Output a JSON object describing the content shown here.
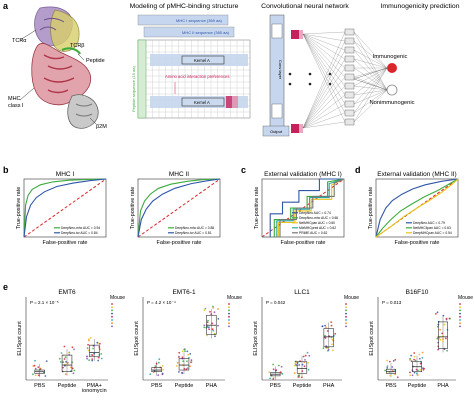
{
  "colors": {
    "green": "#3cab3c",
    "blue": "#2f56a8",
    "red": "#d9262c",
    "yellow": "#e8c21a",
    "teal": "#2aa6a0",
    "gray": "#777777",
    "pink": "#c8205a",
    "lightblue": "#c6d6ee"
  },
  "panel_a": {
    "letter": "a",
    "titles": {
      "modeling": "Modeling of pMHC-binding structure",
      "cnn": "Convolutional neural network",
      "prediction": "Immunogenicity prediction"
    },
    "mol_labels": {
      "tcra": "TCRα",
      "tcrb": "TCRβ",
      "peptide": "Peptide",
      "mhc1": "MHC",
      "mhc2": "class I",
      "b2m": "β2M"
    },
    "seq_labels": {
      "mhc1": "MHC I sequence (369 aa)",
      "mhc2": "MHC II sequence (365 aa)",
      "peptide_seq": "Peptide sequence (15 aa)",
      "kernel1": "Kernel A",
      "kernel2": "Kernel A",
      "aa_pref": "Amino acid interaction preferences",
      "conv": "Conv layer",
      "out": "Output"
    },
    "outputs": {
      "immuno": "Immunogenic",
      "nonimmuno": "Nonimmunogenic"
    }
  },
  "chart_data": [
    {
      "id": "b1",
      "type": "line",
      "panel": "b",
      "title": "MHC I",
      "xlabel": "False-positive rate",
      "ylabel": "True-positive rate",
      "xlim": [
        0,
        1
      ],
      "ylim": [
        0,
        1
      ],
      "series": [
        {
          "name": "DeepNeo-mhc AUC = 0.94",
          "color": "green",
          "x": [
            0,
            0.02,
            0.05,
            0.1,
            0.2,
            0.35,
            0.55,
            0.75,
            1
          ],
          "y": [
            0,
            0.55,
            0.72,
            0.82,
            0.9,
            0.95,
            0.98,
            0.99,
            1
          ]
        },
        {
          "name": "DeepNeo-tcr AUC = 0.84",
          "color": "blue",
          "x": [
            0,
            0.03,
            0.08,
            0.15,
            0.25,
            0.4,
            0.6,
            0.8,
            1
          ],
          "y": [
            0,
            0.35,
            0.55,
            0.68,
            0.78,
            0.87,
            0.93,
            0.97,
            1
          ]
        }
      ]
    },
    {
      "id": "b2",
      "type": "line",
      "panel": "",
      "title": "MHC II",
      "xlabel": "False-positive rate",
      "ylabel": "True-positive rate",
      "xlim": [
        0,
        1
      ],
      "ylim": [
        0,
        1
      ],
      "series": [
        {
          "name": "DeepNeo-mhc AUC = 0.88",
          "color": "green",
          "x": [
            0,
            0.03,
            0.08,
            0.15,
            0.25,
            0.4,
            0.6,
            0.8,
            1
          ],
          "y": [
            0,
            0.45,
            0.62,
            0.74,
            0.84,
            0.91,
            0.96,
            0.99,
            1
          ]
        },
        {
          "name": "DeepNeo-tcr AUC = 0.81",
          "color": "blue",
          "x": [
            0,
            0.04,
            0.1,
            0.18,
            0.3,
            0.45,
            0.65,
            0.85,
            1
          ],
          "y": [
            0,
            0.3,
            0.48,
            0.62,
            0.74,
            0.84,
            0.92,
            0.97,
            1
          ]
        }
      ]
    },
    {
      "id": "c",
      "type": "line",
      "panel": "c",
      "title": "External validation (MHC I)",
      "xlabel": "False-positive rate",
      "ylabel": "True-positive rate",
      "xlim": [
        0,
        1
      ],
      "ylim": [
        0,
        1
      ],
      "series": [
        {
          "name": "DeepNeo AUC = 0.74",
          "color": "blue",
          "x": [
            0,
            0.1,
            0.1,
            0.25,
            0.25,
            0.45,
            0.45,
            0.7,
            0.7,
            1
          ],
          "y": [
            0,
            0,
            0.4,
            0.4,
            0.6,
            0.6,
            0.8,
            0.8,
            1,
            1
          ]
        },
        {
          "name": "DeepNeo-mhc AUC = 0.66",
          "color": "green",
          "x": [
            0,
            0.15,
            0.15,
            0.35,
            0.35,
            0.55,
            0.55,
            0.8,
            0.8,
            1
          ],
          "y": [
            0,
            0,
            0.3,
            0.3,
            0.5,
            0.5,
            0.7,
            0.7,
            0.95,
            1
          ]
        },
        {
          "name": "NetMHCpan AUC = 0.60",
          "color": "yellow",
          "x": [
            0,
            0.2,
            0.2,
            0.4,
            0.4,
            0.6,
            0.6,
            0.85,
            0.85,
            1
          ],
          "y": [
            0,
            0,
            0.25,
            0.25,
            0.45,
            0.45,
            0.65,
            0.65,
            0.9,
            1
          ]
        },
        {
          "name": "MixMHCpred AUC = 0.62",
          "color": "teal",
          "x": [
            0,
            0.18,
            0.18,
            0.38,
            0.38,
            0.58,
            0.58,
            0.82,
            0.82,
            1
          ],
          "y": [
            0,
            0,
            0.28,
            0.28,
            0.48,
            0.48,
            0.68,
            0.68,
            0.92,
            1
          ]
        },
        {
          "name": "PRIME AUC = 0.62",
          "color": "gray",
          "x": [
            0,
            0.22,
            0.22,
            0.42,
            0.42,
            0.62,
            0.62,
            0.88,
            0.88,
            1
          ],
          "y": [
            0,
            0,
            0.3,
            0.3,
            0.5,
            0.5,
            0.7,
            0.7,
            0.93,
            1
          ]
        }
      ]
    },
    {
      "id": "d",
      "type": "line",
      "panel": "d",
      "title": "External validation (MHC II)",
      "xlabel": "False-positive rate",
      "ylabel": "True-positive rate",
      "xlim": [
        0,
        1
      ],
      "ylim": [
        0,
        1
      ],
      "series": [
        {
          "name": "DeepNeo AUC = 0.79",
          "color": "blue",
          "x": [
            0,
            0.05,
            0.12,
            0.2,
            0.32,
            0.45,
            0.6,
            0.8,
            1
          ],
          "y": [
            0,
            0.3,
            0.5,
            0.63,
            0.74,
            0.83,
            0.9,
            0.96,
            1
          ]
        },
        {
          "name": "NetMHCIIpan AUC = 0.63",
          "color": "green",
          "x": [
            0,
            0.08,
            0.18,
            0.3,
            0.45,
            0.6,
            0.75,
            0.9,
            1
          ],
          "y": [
            0,
            0.15,
            0.3,
            0.45,
            0.58,
            0.7,
            0.8,
            0.92,
            1
          ]
        },
        {
          "name": "DeepMHCpan AUC = 0.54",
          "color": "yellow",
          "x": [
            0,
            0.1,
            0.22,
            0.35,
            0.5,
            0.65,
            0.8,
            0.92,
            1
          ],
          "y": [
            0,
            0.1,
            0.22,
            0.36,
            0.5,
            0.63,
            0.77,
            0.9,
            1
          ]
        }
      ]
    }
  ],
  "panel_e": {
    "letter": "e",
    "ylabel": "ELISpot count",
    "legend_title": "Mouse",
    "plots": [
      {
        "title": "EMT6",
        "pval": "P = 2.1 × 10⁻⁵",
        "categories": [
          "PBS",
          "Peptide",
          "PMA+ ionomycin"
        ],
        "box": [
          [
            0.08,
            0.1,
            0.12
          ],
          [
            0.1,
            0.18,
            0.3
          ],
          [
            0.28,
            0.33,
            0.42
          ]
        ]
      },
      {
        "title": "EMT6-1",
        "pval": "P = 4.2 × 10⁻⁴",
        "categories": [
          "PBS",
          "Peptide",
          "PHA"
        ],
        "box": [
          [
            0.1,
            0.12,
            0.15
          ],
          [
            0.12,
            0.18,
            0.26
          ],
          [
            0.55,
            0.66,
            0.78
          ]
        ]
      },
      {
        "title": "LLC1",
        "pval": "P = 0.042",
        "categories": [
          "PBS",
          "Peptide",
          "PHA"
        ],
        "box": [
          [
            0.05,
            0.07,
            0.09
          ],
          [
            0.08,
            0.14,
            0.22
          ],
          [
            0.4,
            0.52,
            0.62
          ]
        ]
      },
      {
        "title": "B16F10",
        "pval": "P = 0.013",
        "categories": [
          "PBS",
          "Peptide",
          "PHA"
        ],
        "box": [
          [
            0.08,
            0.1,
            0.13
          ],
          [
            0.1,
            0.16,
            0.22
          ],
          [
            0.38,
            0.52,
            0.7
          ]
        ]
      }
    ]
  }
}
